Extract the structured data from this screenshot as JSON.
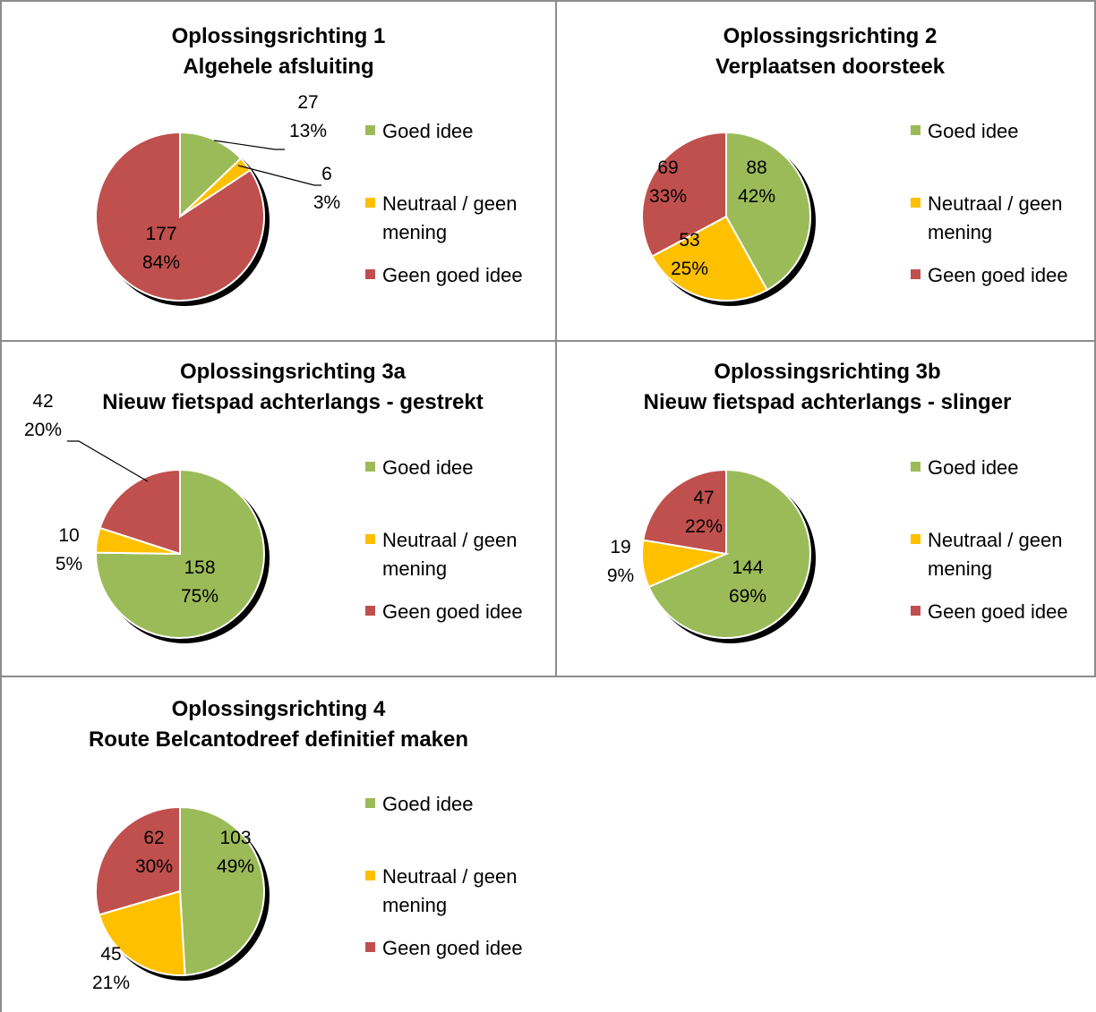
{
  "colors": {
    "goed": "#9bbb59",
    "neutraal": "#ffc000",
    "geen": "#c0504d",
    "shadow": "#000000",
    "border": "#8c8c8c"
  },
  "legend": [
    "Goed idee",
    "Neutraal / geen mening",
    "Geen goed idee"
  ],
  "chart_data": [
    {
      "type": "pie",
      "title": "Oplossingsrichting 1",
      "subtitle": "Algehele afsluiting",
      "categories": [
        "Goed idee",
        "Neutraal / geen mening",
        "Geen goed idee"
      ],
      "values": [
        27,
        6,
        177
      ],
      "percent_labels": [
        "13%",
        "3%",
        "84%"
      ]
    },
    {
      "type": "pie",
      "title": "Oplossingsrichting 2",
      "subtitle": "Verplaatsen doorsteek",
      "categories": [
        "Goed idee",
        "Neutraal / geen mening",
        "Geen goed idee"
      ],
      "values": [
        88,
        53,
        69
      ],
      "percent_labels": [
        "42%",
        "25%",
        "33%"
      ]
    },
    {
      "type": "pie",
      "title": "Oplossingsrichting 3a",
      "subtitle": "Nieuw fietspad achterlangs - gestrekt",
      "categories": [
        "Goed idee",
        "Neutraal / geen mening",
        "Geen goed idee"
      ],
      "values": [
        158,
        10,
        42
      ],
      "percent_labels": [
        "75%",
        "5%",
        "20%"
      ]
    },
    {
      "type": "pie",
      "title": "Oplossingsrichting 3b",
      "subtitle": "Nieuw fietspad achterlangs - slinger",
      "categories": [
        "Goed idee",
        "Neutraal / geen mening",
        "Geen goed idee"
      ],
      "values": [
        144,
        19,
        47
      ],
      "percent_labels": [
        "69%",
        "9%",
        "22%"
      ]
    },
    {
      "type": "pie",
      "title": "Oplossingsrichting 4",
      "subtitle": "Route Belcantodreef definitief maken",
      "categories": [
        "Goed idee",
        "Neutraal / geen mening",
        "Geen goed idee"
      ],
      "values": [
        103,
        45,
        62
      ],
      "percent_labels": [
        "49%",
        "21%",
        "30%"
      ]
    }
  ]
}
